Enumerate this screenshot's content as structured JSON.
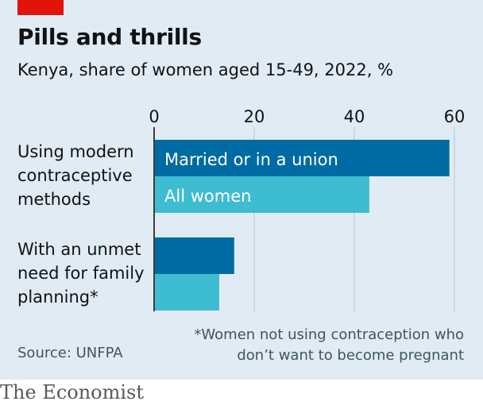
{
  "header": {
    "title": "Pills and thrills",
    "subtitle": "Kenya, share of women aged 15-49, 2022, %"
  },
  "chart_data": {
    "type": "bar",
    "orientation": "horizontal",
    "categories": [
      "Using modern contraceptive methods",
      "With an unmet need for family planning*"
    ],
    "series": [
      {
        "name": "Married or in a union",
        "values": [
          59,
          16
        ],
        "color": "#006ba2"
      },
      {
        "name": "All women",
        "values": [
          43,
          13
        ],
        "color": "#3ebcd2"
      }
    ],
    "xticks": [
      0,
      20,
      40,
      60
    ],
    "xlim": [
      0,
      60
    ],
    "grid": true,
    "legend": "inside-bars"
  },
  "labels": {
    "category_lines": [
      [
        "Using modern",
        "contraceptive",
        "methods"
      ],
      [
        "With an unmet",
        "need for family",
        "planning*"
      ]
    ]
  },
  "footer": {
    "footnote_lines": [
      "*Women not using contraception who",
      "don’t want to become pregnant"
    ],
    "source": "Source: UNFPA",
    "brand": "The Economist"
  }
}
